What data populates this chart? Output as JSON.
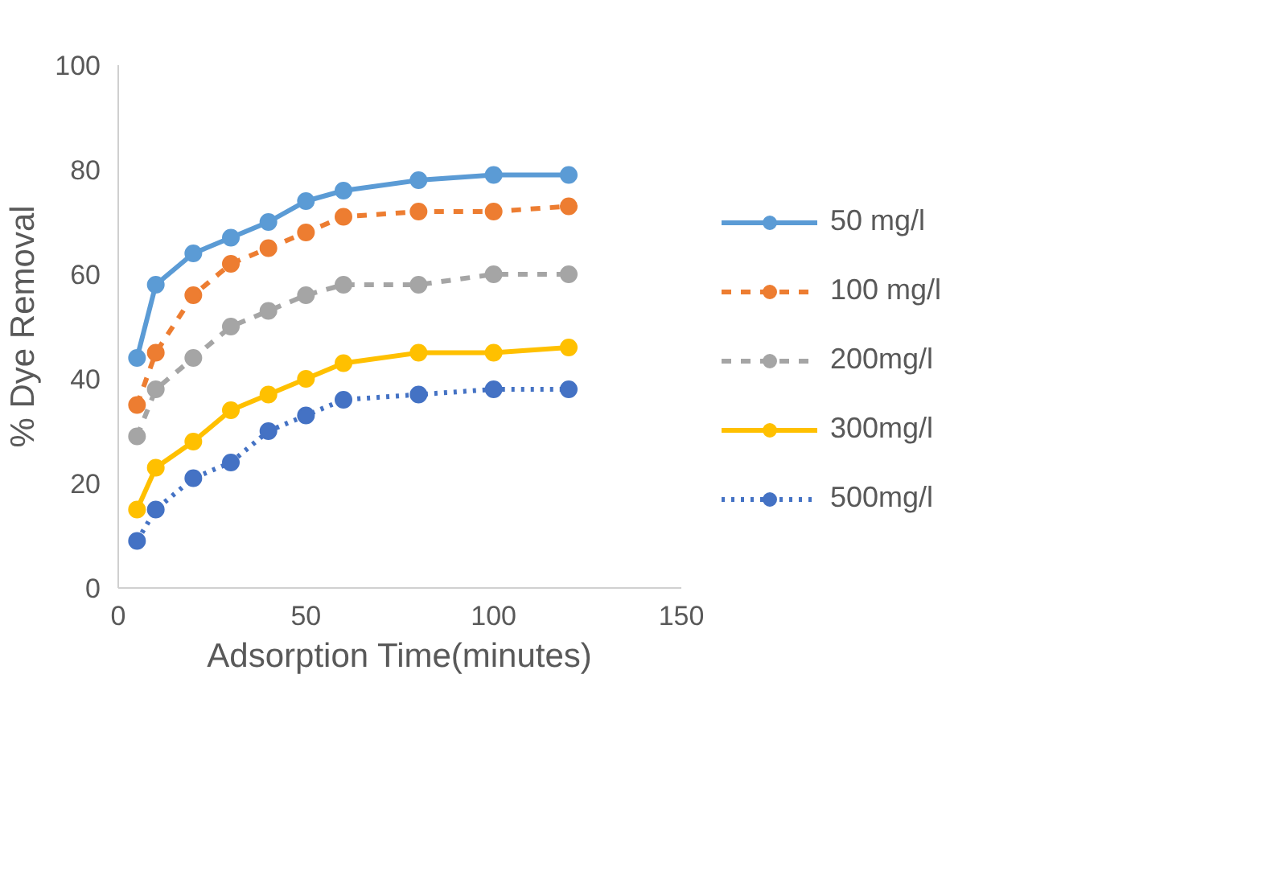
{
  "chart_data": {
    "type": "line",
    "xlabel": "Adsorption Time(minutes)",
    "ylabel": "% Dye Removal",
    "x": [
      5,
      10,
      20,
      30,
      40,
      50,
      60,
      80,
      100,
      120
    ],
    "xlim": [
      0,
      150
    ],
    "xticks": [
      0,
      50,
      100,
      150
    ],
    "ylim": [
      0,
      100
    ],
    "yticks": [
      0,
      20,
      40,
      60,
      80,
      100
    ],
    "grid": false,
    "legend": "right",
    "marker": "circle",
    "series": [
      {
        "name": "50 mg/l",
        "color": "#5b9bd5",
        "line_style": "solid",
        "values": [
          44,
          58,
          64,
          67,
          70,
          74,
          76,
          78,
          79,
          79
        ]
      },
      {
        "name": "100 mg/l",
        "color": "#ed7d31",
        "line_style": "dashed",
        "values": [
          35,
          45,
          56,
          62,
          65,
          68,
          71,
          72,
          72,
          73
        ]
      },
      {
        "name": "200mg/l",
        "color": "#a5a5a5",
        "line_style": "dashed",
        "values": [
          29,
          38,
          44,
          50,
          53,
          56,
          58,
          58,
          60,
          60
        ]
      },
      {
        "name": "300mg/l",
        "color": "#ffc000",
        "line_style": "solid",
        "values": [
          15,
          23,
          28,
          34,
          37,
          40,
          43,
          45,
          45,
          46
        ]
      },
      {
        "name": "500mg/l",
        "color": "#4472c4",
        "line_style": "dotted",
        "values": [
          9,
          15,
          21,
          24,
          30,
          33,
          36,
          37,
          38,
          38
        ]
      }
    ]
  }
}
